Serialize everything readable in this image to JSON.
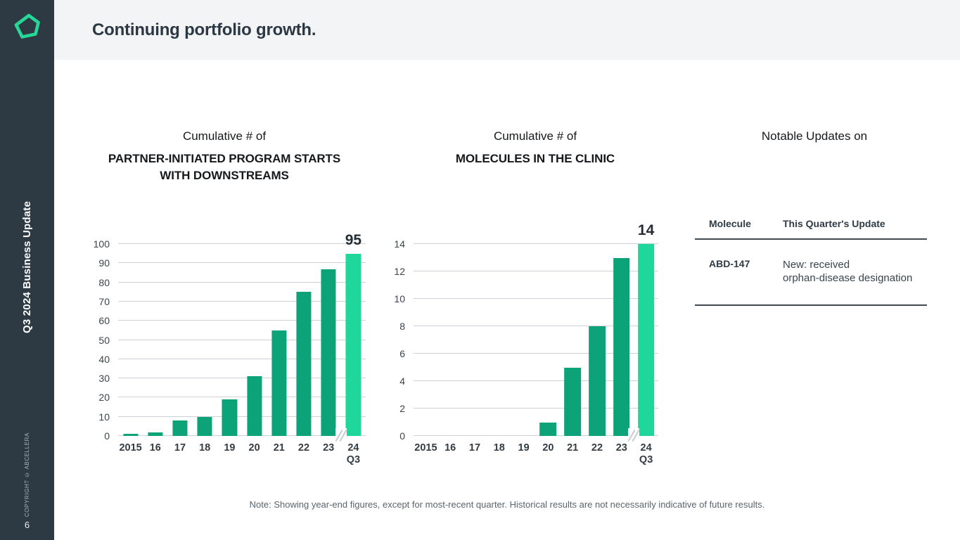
{
  "header": {
    "title": "Continuing portfolio growth."
  },
  "sidebar": {
    "vertical_title": "Q3 2024 Business Update",
    "copyright": "COPYRIGHT © ABCELLERA",
    "page_number": "6",
    "logo_icon": "abcellera-pentagon-logo"
  },
  "colors": {
    "sidebar_background": "#2d3a44",
    "header_background": "#f3f4f5",
    "bar_green": "#0ba377",
    "bar_mint": "#1fd69b",
    "gridline": "#ccd1d6",
    "logo_green": "#26d896"
  },
  "chart_data": [
    {
      "type": "bar",
      "title_prefix": "Cumulative # of",
      "title": "PARTNER-INITIATED PROGRAM STARTS WITH DOWNSTREAMS",
      "categories": [
        "2015",
        "16",
        "17",
        "18",
        "19",
        "20",
        "21",
        "22",
        "23",
        "24\nQ3"
      ],
      "values": [
        1,
        2,
        8,
        10,
        19,
        31,
        55,
        75,
        87,
        95
      ],
      "ylim": [
        0,
        100
      ],
      "yticks": [
        0,
        10,
        20,
        30,
        40,
        50,
        60,
        70,
        80,
        90,
        100
      ],
      "xlabel": "",
      "ylabel": "",
      "grid": true,
      "legend": "none",
      "bar_color": "#0ba377",
      "highlight_color": "#1fd69b",
      "highlight_index": 9,
      "bar_width_frac": 0.6,
      "annotation": {
        "index": 9,
        "text": "95"
      },
      "axis_break_after": 8
    },
    {
      "type": "bar",
      "title_prefix": "Cumulative # of",
      "title": "MOLECULES IN THE CLINIC",
      "categories": [
        "2015",
        "16",
        "17",
        "18",
        "19",
        "20",
        "21",
        "22",
        "23",
        "24\nQ3"
      ],
      "values": [
        0,
        0,
        0,
        0,
        0,
        1,
        5,
        8,
        13,
        14
      ],
      "ylim": [
        0,
        14
      ],
      "yticks": [
        0,
        2,
        4,
        6,
        8,
        10,
        12,
        14
      ],
      "xlabel": "",
      "ylabel": "",
      "grid": true,
      "legend": "none",
      "bar_color": "#0ba377",
      "highlight_color": "#1fd69b",
      "highlight_index": 9,
      "bar_width_frac": 0.68,
      "annotation": {
        "index": 9,
        "text": "14"
      },
      "axis_break_after": 8
    }
  ],
  "table": {
    "title_prefix": "Notable Updates on",
    "columns": [
      "Molecule",
      "This Quarter's Update"
    ],
    "rows": [
      {
        "molecule": "ABD-147",
        "update": "New: received\norphan-disease designation"
      }
    ]
  },
  "note": "Note: Showing year-end figures, except for most-recent quarter. Historical results are not necessarily indicative of future results."
}
